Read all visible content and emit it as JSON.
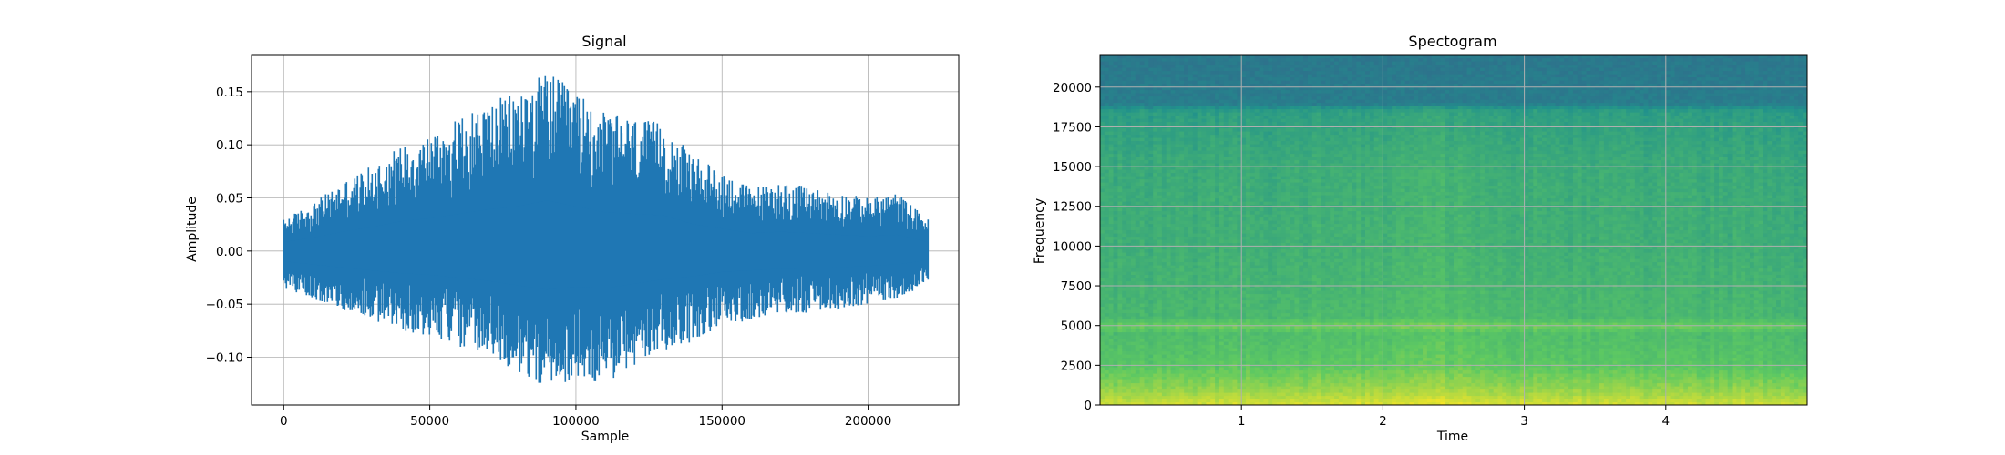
{
  "chart_data": [
    {
      "type": "line",
      "title": "Signal",
      "xlabel": "Sample",
      "ylabel": "Amplitude",
      "xlim": [
        -11000,
        231000
      ],
      "ylim": [
        -0.145,
        0.185
      ],
      "x_ticks": [
        0,
        50000,
        100000,
        150000,
        200000
      ],
      "y_ticks": [
        -0.1,
        -0.05,
        0.0,
        0.05,
        0.1,
        0.15
      ],
      "x_tick_labels": [
        "0",
        "50000",
        "100000",
        "150000",
        "200000"
      ],
      "y_tick_labels": [
        "−0.10",
        "−0.05",
        "0.00",
        "0.05",
        "0.10",
        "0.15"
      ],
      "grid": true,
      "color": "#1f77b4",
      "sample_count": 220500,
      "series": [
        {
          "x": [
            0,
            10000,
            20000,
            30000,
            40000,
            50000,
            60000,
            70000,
            80000,
            90000,
            100000,
            110000,
            120000,
            130000,
            140000,
            150000,
            160000,
            170000,
            180000,
            190000,
            200000,
            210000,
            220500
          ],
          "upper": [
            0.03,
            0.045,
            0.065,
            0.08,
            0.1,
            0.11,
            0.125,
            0.14,
            0.15,
            0.17,
            0.15,
            0.13,
            0.125,
            0.12,
            0.09,
            0.075,
            0.06,
            0.065,
            0.06,
            0.055,
            0.05,
            0.055,
            0.03
          ],
          "lower": [
            -0.035,
            -0.045,
            -0.055,
            -0.065,
            -0.075,
            -0.08,
            -0.09,
            -0.1,
            -0.115,
            -0.13,
            -0.12,
            -0.125,
            -0.11,
            -0.095,
            -0.085,
            -0.07,
            -0.065,
            -0.06,
            -0.058,
            -0.055,
            -0.05,
            -0.045,
            -0.03
          ]
        }
      ]
    },
    {
      "type": "heatmap",
      "title": "Spectogram",
      "xlabel": "Time",
      "ylabel": "Frequency",
      "xlim": [
        0.0,
        5.0
      ],
      "ylim": [
        0,
        22050
      ],
      "x_ticks": [
        1,
        2,
        3,
        4
      ],
      "y_ticks": [
        0,
        2500,
        5000,
        7500,
        10000,
        12500,
        15000,
        17500,
        20000
      ],
      "x_tick_labels": [
        "1",
        "2",
        "3",
        "4"
      ],
      "y_tick_labels": [
        "0",
        "2500",
        "5000",
        "7500",
        "10000",
        "12500",
        "15000",
        "17500",
        "20000"
      ],
      "grid": true,
      "colormap": "viridis",
      "colormap_stops": [
        "#440154",
        "#3b528b",
        "#21918c",
        "#5ec962",
        "#fde725"
      ],
      "freq_bins": [
        0,
        1000,
        2500,
        4500,
        5000,
        5500,
        7500,
        10000,
        15000,
        17500,
        18500,
        19000,
        22050
      ],
      "level_profile": [
        0.92,
        0.82,
        0.72,
        0.68,
        0.76,
        0.66,
        0.64,
        0.62,
        0.6,
        0.56,
        0.54,
        0.42,
        0.4
      ],
      "time_bins": [
        0,
        0.5,
        1,
        1.5,
        2,
        2.3,
        2.5,
        3,
        3.5,
        4,
        4.5,
        5
      ],
      "time_profile": [
        0,
        0.01,
        0.01,
        0.02,
        0.03,
        0.06,
        0.04,
        0.02,
        0.01,
        0.01,
        0.01,
        0
      ]
    }
  ]
}
